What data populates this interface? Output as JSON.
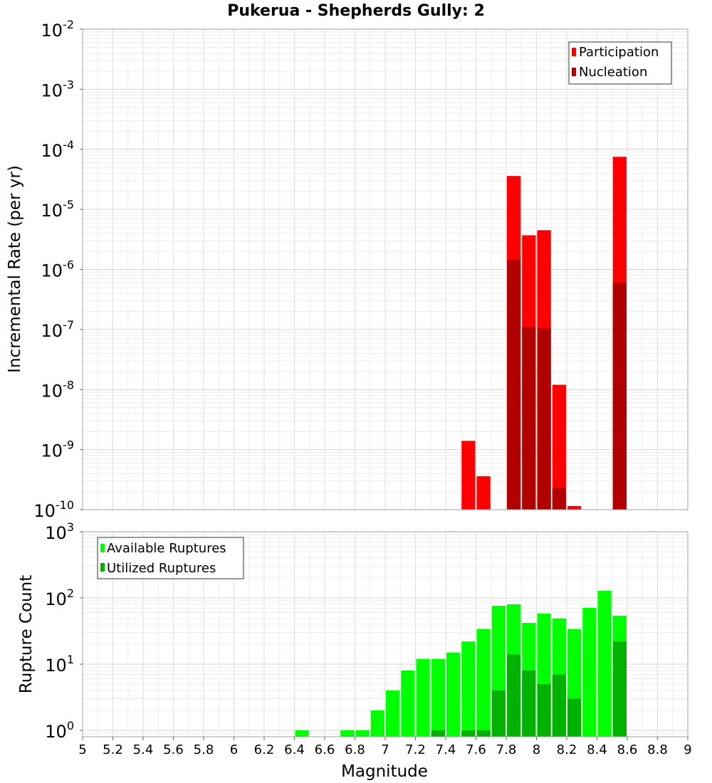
{
  "title": "Pukerua - Shepherds Gully: 2",
  "xlabel": "Magnitude",
  "x_ticks": [
    "5",
    "5.2",
    "5.4",
    "5.6",
    "5.8",
    "6",
    "6.2",
    "6.4",
    "6.6",
    "6.8",
    "7",
    "7.2",
    "7.4",
    "7.6",
    "7.8",
    "8",
    "8.2",
    "8.4",
    "8.6",
    "8.8",
    "9"
  ],
  "top_panel": {
    "ylabel": "Incremental Rate (per yr)",
    "y_tick_bases": [
      "10",
      "10",
      "10",
      "10",
      "10",
      "10",
      "10",
      "10",
      "10"
    ],
    "y_tick_exponents": [
      "-10",
      "-9",
      "-8",
      "-7",
      "-6",
      "-5",
      "-4",
      "-3",
      "-2"
    ],
    "legend": [
      "Participation",
      "Nucleation"
    ]
  },
  "bottom_panel": {
    "ylabel": "Rupture Count",
    "y_tick_bases": [
      "10",
      "10",
      "10",
      "10"
    ],
    "y_tick_exponents": [
      "0",
      "1",
      "2",
      "3"
    ],
    "legend": [
      "Available Ruptures",
      "Utilized Ruptures"
    ]
  },
  "colors": {
    "participation": "#ff0000",
    "nucleation": "#b20000",
    "available": "#00ff00",
    "utilized": "#00b200",
    "grid": "#e4e4e4"
  },
  "chart_data": [
    {
      "type": "bar",
      "title": "Pukerua - Shepherds Gully: 2",
      "xlabel": "",
      "ylabel": "Incremental Rate (per yr)",
      "yscale": "log",
      "xlim": [
        5,
        9
      ],
      "ylim": [
        1e-10,
        0.01
      ],
      "grid": true,
      "legend_position": "top-right",
      "x": [
        7.55,
        7.65,
        7.85,
        7.95,
        8.05,
        8.15,
        8.25,
        8.55
      ],
      "series": [
        {
          "name": "Participation",
          "values": [
            1.4e-09,
            3.6e-10,
            3.6e-05,
            3.7e-06,
            4.5e-06,
            1.2e-08,
            1.15e-10,
            7.5e-05
          ]
        },
        {
          "name": "Nucleation",
          "values": [
            null,
            null,
            1.45e-06,
            1.1e-07,
            1.05e-07,
            2.3e-10,
            null,
            6e-07
          ]
        }
      ]
    },
    {
      "type": "bar",
      "title": "",
      "xlabel": "Magnitude",
      "ylabel": "Rupture Count",
      "yscale": "log",
      "xlim": [
        5,
        9
      ],
      "ylim": [
        0.8,
        1000
      ],
      "grid": true,
      "legend_position": "top-left",
      "x": [
        6.45,
        6.75,
        6.85,
        6.95,
        7.05,
        7.15,
        7.25,
        7.35,
        7.45,
        7.55,
        7.65,
        7.75,
        7.85,
        7.95,
        8.05,
        8.15,
        8.25,
        8.35,
        8.45,
        8.55
      ],
      "series": [
        {
          "name": "Available Ruptures",
          "values": [
            1,
            1,
            1,
            2,
            4,
            8,
            12,
            12,
            15,
            22,
            34,
            76,
            80,
            42,
            58,
            49,
            34,
            71,
            128,
            54
          ]
        },
        {
          "name": "Utilized Ruptures",
          "values": [
            null,
            null,
            null,
            null,
            null,
            null,
            null,
            1,
            null,
            1,
            1,
            4,
            14,
            8,
            5,
            7,
            3,
            null,
            null,
            22
          ]
        }
      ]
    }
  ]
}
